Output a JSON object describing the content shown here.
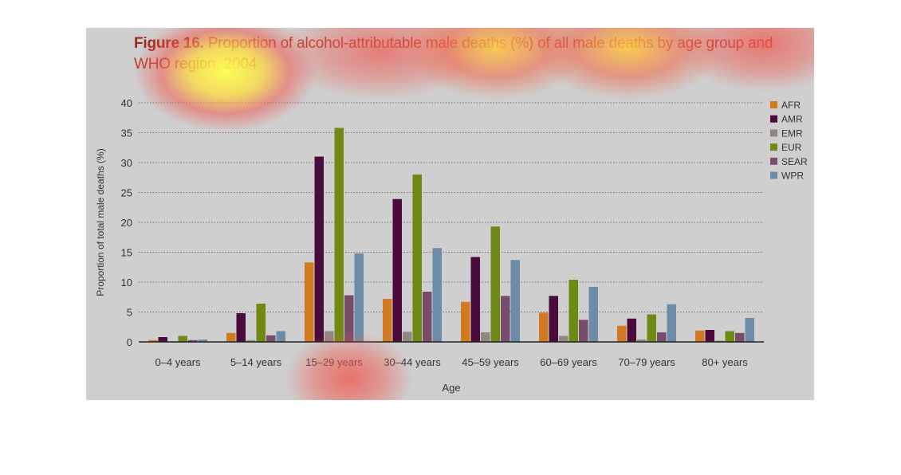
{
  "figure": {
    "label": "Figure 16.",
    "title_line1": " Proportion of alcohol-attributable male deaths (%) of all male deaths by age group and",
    "title_line2": "WHO region, 2004"
  },
  "colors": {
    "background": "#cfcfcf",
    "title": "#b83a2a",
    "AFR": "#d27a1f",
    "AMR": "#4a0a3c",
    "EMR": "#8e8880",
    "EUR": "#6e8a14",
    "SEAR": "#7a4c6c",
    "WPR": "#6d8ca8"
  },
  "chart_data": {
    "type": "bar",
    "title": "Figure 16. Proportion of alcohol-attributable male deaths (%) of all male deaths by age group and WHO region, 2004",
    "xlabel": "Age",
    "ylabel": "Proportion of total male deaths (%)",
    "ylim": [
      0,
      40
    ],
    "yticks": [
      0,
      5,
      10,
      15,
      20,
      25,
      30,
      35,
      40
    ],
    "grid": true,
    "legend_position": "top-right",
    "categories": [
      "0–4 years",
      "5–14 years",
      "15–29 years",
      "30–44 years",
      "45–59 years",
      "60–69 years",
      "70–79 years",
      "80+ years"
    ],
    "series": [
      {
        "name": "AFR",
        "values": [
          0.3,
          1.5,
          13.3,
          7.2,
          6.7,
          4.9,
          2.7,
          1.9
        ]
      },
      {
        "name": "AMR",
        "values": [
          0.8,
          4.8,
          31.0,
          23.9,
          14.2,
          7.7,
          3.9,
          2.0
        ]
      },
      {
        "name": "EMR",
        "values": [
          0.1,
          0.3,
          1.8,
          1.7,
          1.6,
          1.0,
          0.4,
          0.2
        ]
      },
      {
        "name": "EUR",
        "values": [
          1.0,
          6.4,
          35.8,
          28.0,
          19.3,
          10.4,
          4.6,
          1.8
        ]
      },
      {
        "name": "SEAR",
        "values": [
          0.3,
          1.1,
          7.8,
          8.4,
          7.7,
          3.7,
          1.6,
          1.5
        ]
      },
      {
        "name": "WPR",
        "values": [
          0.4,
          1.8,
          14.8,
          15.7,
          13.7,
          9.2,
          6.3,
          4.0
        ]
      }
    ]
  }
}
